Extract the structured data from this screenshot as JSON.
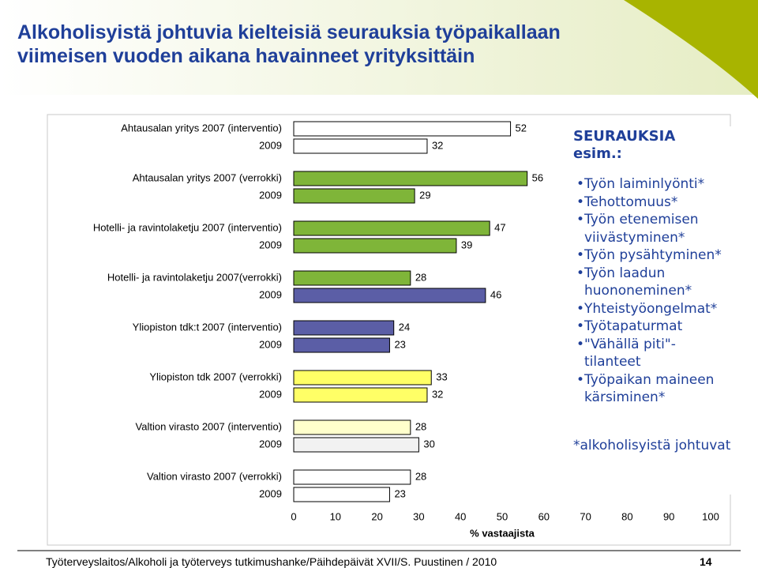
{
  "chart_data": {
    "type": "bar",
    "orientation": "horizontal",
    "title": "Alkoholisyistä johtuvia kielteisiä seurauksia työpaikallaan viimeisen vuoden aikana havainneet yrityksittäin",
    "x_label": "% vastaajista",
    "categories": [
      "Ahtausalan yritys 2007 (interventio)",
      "2009",
      "Ahtausalan yritys 2007 (verrokki)",
      "2009",
      "Hotelli- ja ravintolaketju 2007 (interventio)",
      "2009",
      "Hotelli- ja ravintolaketju 2007(verrokki)",
      "2009",
      "Yliopiston tdk:t 2007 (interventio)",
      "2009",
      "Yliopiston tdk 2007 (verrokki)",
      "2009",
      "Valtion virasto 2007 (interventio)",
      "2009",
      "Valtion virasto 2007 (verrokki)",
      "2009"
    ],
    "values": [
      52,
      32,
      56,
      29,
      47,
      39,
      28,
      46,
      24,
      23,
      33,
      32,
      28,
      30,
      28,
      23
    ],
    "colors": [
      "#ffffff",
      "#ffffff",
      "#7fb539",
      "#7fb539",
      "#7fb539",
      "#7fb539",
      "#7fb539",
      "#5b5ea6",
      "#5b5ea6",
      "#5b5ea6",
      "#ffff66",
      "#ffff66",
      "#ffffcc",
      "#f2f2f2",
      "#ffffff",
      "#ffffff"
    ],
    "xlim": [
      0,
      100
    ],
    "xticks": [
      0,
      10,
      20,
      30,
      40,
      50,
      60,
      70,
      80,
      90,
      100
    ],
    "grid": false
  },
  "side": {
    "heading": "SEURAUKSIA esim.:",
    "bullets": [
      "Työn laiminlyönti*",
      "Tehottomuus*",
      "Työn etenemisen viivästyminen*",
      "Työn pysähtyminen*",
      "Työn laadun huononeminen*",
      "Yhteistyöongelmat*",
      "Työtapaturmat",
      "\"Vähällä piti\"-tilanteet",
      "Työpaikan maineen kärsiminen*"
    ],
    "note": "*alkoholisyistä johtuvat"
  },
  "footer": {
    "text": "Työterveyslaitos/Alkoholi ja työterveys tutkimushanke/Päihdepäivät XVII/S. Puustinen / 2010",
    "page": "14"
  }
}
